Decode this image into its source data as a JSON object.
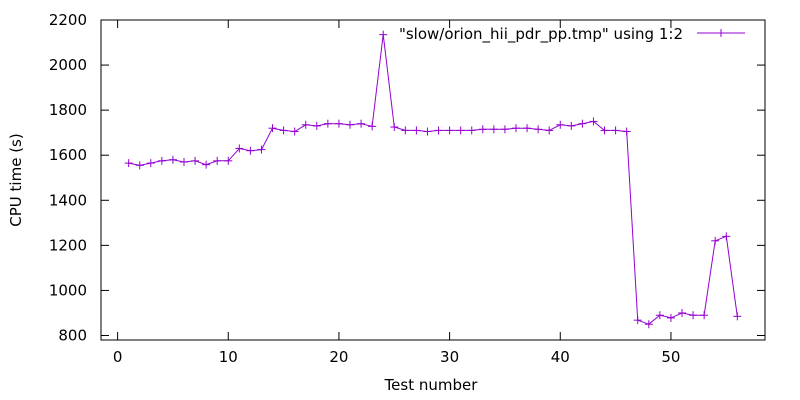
{
  "chart_data": {
    "type": "line",
    "title": "",
    "xlabel": "Test number",
    "ylabel": "CPU time (s)",
    "xlim": [
      -1.5,
      58.5
    ],
    "ylim": [
      780,
      2200
    ],
    "xticks": [
      0,
      10,
      20,
      30,
      40,
      50
    ],
    "yticks": [
      800,
      1000,
      1200,
      1400,
      1600,
      1800,
      2000,
      2200
    ],
    "grid": false,
    "legend_position": "top-right",
    "series": [
      {
        "name": "\"slow/orion_hii_pdr_pp.tmp\" using 1:2",
        "color": "#9400d3",
        "marker": "plus",
        "x": [
          1,
          2,
          3,
          4,
          5,
          6,
          7,
          8,
          9,
          10,
          11,
          12,
          13,
          14,
          15,
          16,
          17,
          18,
          19,
          20,
          21,
          22,
          23,
          24,
          25,
          26,
          27,
          28,
          29,
          30,
          31,
          32,
          33,
          34,
          35,
          36,
          37,
          38,
          39,
          40,
          41,
          42,
          43,
          44,
          45,
          46,
          47,
          48,
          49,
          50,
          51,
          52,
          53,
          54,
          55,
          56
        ],
        "y": [
          1565,
          1555,
          1565,
          1575,
          1580,
          1570,
          1575,
          1558,
          1575,
          1575,
          1630,
          1620,
          1625,
          1720,
          1710,
          1705,
          1735,
          1730,
          1740,
          1740,
          1735,
          1740,
          1728,
          2135,
          1725,
          1710,
          1710,
          1705,
          1710,
          1710,
          1710,
          1710,
          1715,
          1715,
          1715,
          1720,
          1720,
          1715,
          1710,
          1735,
          1730,
          1740,
          1750,
          1710,
          1710,
          1705,
          868,
          850,
          890,
          878,
          900,
          890,
          890,
          1220,
          1240,
          885
        ]
      }
    ]
  }
}
